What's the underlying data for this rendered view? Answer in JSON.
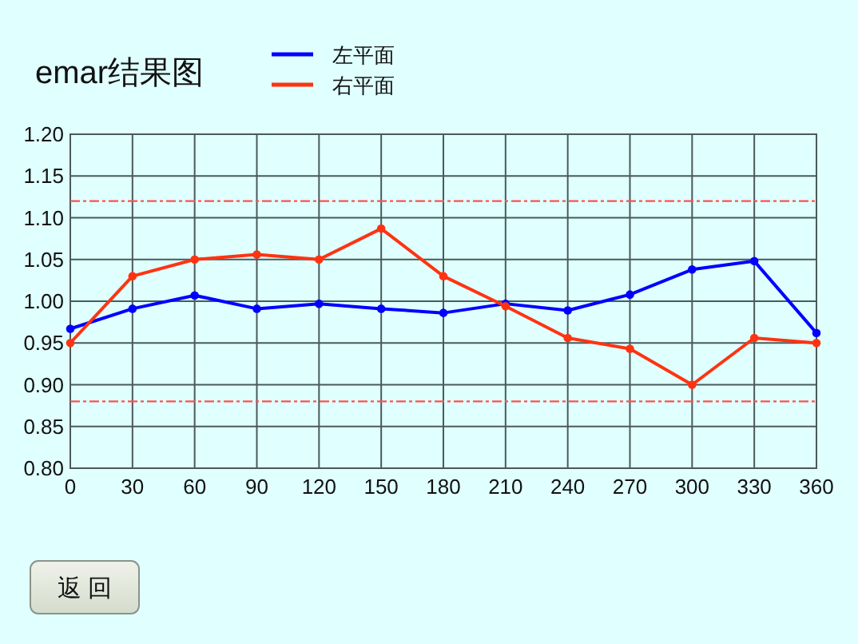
{
  "chart_data": {
    "type": "line",
    "title": "emar结果图",
    "x": [
      0,
      30,
      60,
      90,
      120,
      150,
      180,
      210,
      240,
      270,
      300,
      330,
      360
    ],
    "series": [
      {
        "name": "左平面",
        "color": "#0000ff",
        "values": [
          0.967,
          0.991,
          1.007,
          0.991,
          0.997,
          0.991,
          0.986,
          0.997,
          0.989,
          1.008,
          1.038,
          1.048,
          0.962
        ]
      },
      {
        "name": "右平面",
        "color": "#ff3311",
        "values": [
          0.95,
          1.03,
          1.05,
          1.056,
          1.05,
          1.087,
          1.03,
          0.994,
          0.956,
          0.943,
          0.9,
          0.956,
          0.95
        ]
      }
    ],
    "xlim": [
      0,
      360
    ],
    "xticks": [
      0,
      30,
      60,
      90,
      120,
      150,
      180,
      210,
      240,
      270,
      300,
      330,
      360
    ],
    "ylim": [
      0.8,
      1.2
    ],
    "yticks": [
      {
        "value": 0.8,
        "label": "0.80"
      },
      {
        "value": 0.85,
        "label": "0.85"
      },
      {
        "value": 0.9,
        "label": "0.90"
      },
      {
        "value": 0.95,
        "label": "0.95"
      },
      {
        "value": 1.0,
        "label": "1.00"
      },
      {
        "value": 1.05,
        "label": "1.05"
      },
      {
        "value": 1.1,
        "label": "1.10"
      },
      {
        "value": 1.15,
        "label": "1.15"
      },
      {
        "value": 1.2,
        "label": "1.20"
      }
    ],
    "ref_lines": [
      {
        "axis": "y",
        "value": 1.12,
        "color": "#ff5050",
        "line_style": "dashdot"
      },
      {
        "axis": "y",
        "value": 0.88,
        "color": "#ff5050",
        "line_style": "dashdot"
      }
    ],
    "annotations": [
      "返 回"
    ],
    "grid": true,
    "legend": "top",
    "marker": "circle",
    "line_style": "solid"
  }
}
